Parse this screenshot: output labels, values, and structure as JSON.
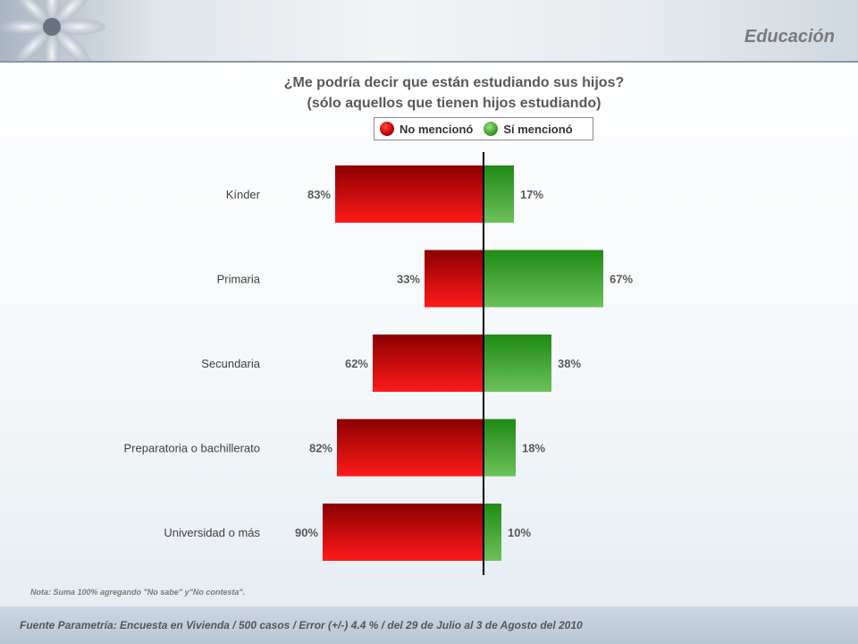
{
  "header": {
    "section_title": "Educación"
  },
  "question": {
    "line1": "¿Me podría decir que están estudiando sus hijos?",
    "line2": "(sólo aquellos que tienen hijos estudiando)"
  },
  "legend": {
    "no_label": "No mencionó",
    "si_label": "Sí mencionó"
  },
  "colors": {
    "no": "#c00000",
    "si": "#4aa534"
  },
  "chart_data": {
    "type": "bar",
    "orientation": "horizontal-diverging",
    "categories": [
      "Kínder",
      "Primaria",
      "Secundaria",
      "Preparatoria o bachillerato",
      "Universidad o más"
    ],
    "series": [
      {
        "name": "No mencionó",
        "values": [
          83,
          33,
          62,
          82,
          90
        ],
        "labels": [
          "83%",
          "33%",
          "62%",
          "82%",
          "90%"
        ]
      },
      {
        "name": "Sí mencionó",
        "values": [
          17,
          67,
          38,
          18,
          10
        ],
        "labels": [
          "17%",
          "67%",
          "38%",
          "18%",
          "10%"
        ]
      }
    ],
    "legend": "top-center",
    "grid": false
  },
  "note": "Nota: Suma 100%  agregando \"No sabe\" y\"No contesta\".",
  "footer": "Fuente Parametría: Encuesta en Vivienda  /  500 casos / Error (+/-) 4.4 % / del 29 de Julio al 3 de Agosto del 2010"
}
